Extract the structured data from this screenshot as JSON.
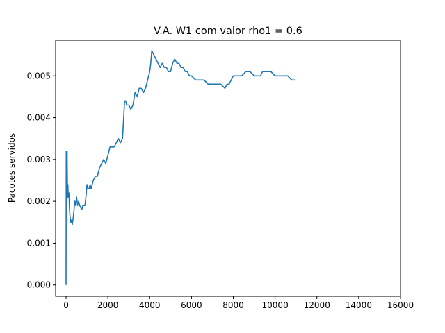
{
  "chart_data": {
    "type": "line",
    "title": "V.A. W1 com valor rho1 = 0.6",
    "xlabel": "",
    "ylabel": "Pacotes servidos",
    "xlim": [
      -500,
      16000
    ],
    "ylim": [
      -0.00027,
      0.00585
    ],
    "xticks": [
      0,
      2000,
      4000,
      6000,
      8000,
      10000,
      12000,
      14000,
      16000
    ],
    "xtick_labels": [
      "0",
      "2000",
      "4000",
      "6000",
      "8000",
      "10000",
      "12000",
      "14000",
      "16000"
    ],
    "yticks": [
      0.0,
      0.001,
      0.002,
      0.003,
      0.004,
      0.005
    ],
    "ytick_labels": [
      "0.000",
      "0.001",
      "0.002",
      "0.003",
      "0.004",
      "0.005"
    ],
    "grid": false,
    "series_color": "#1f77b4",
    "series": [
      {
        "x": [
          0,
          10,
          20,
          30,
          40,
          50,
          60,
          70,
          80,
          90,
          100,
          120,
          140,
          160,
          180,
          200,
          230,
          260,
          300,
          340,
          380,
          420,
          460,
          500,
          550,
          600,
          650,
          700,
          750,
          800,
          850,
          900,
          950,
          1000,
          1050,
          1100,
          1150,
          1200,
          1300,
          1400,
          1500,
          1600,
          1700,
          1800,
          1900,
          2000,
          2100,
          2200,
          2300,
          2400,
          2500,
          2600,
          2700,
          2800,
          2850,
          2900,
          3000,
          3100,
          3200,
          3300,
          3400,
          3500,
          3600,
          3700,
          3800,
          3900,
          4000,
          4050,
          4100,
          4200,
          4300,
          4400,
          4500,
          4600,
          4700,
          4800,
          4900,
          5000,
          5100,
          5200,
          5300,
          5400,
          5500,
          5600,
          5700,
          5800,
          5900,
          6000,
          6200,
          6400,
          6600,
          6800,
          7000,
          7200,
          7400,
          7600,
          7700,
          7800,
          7900,
          8000,
          8200,
          8400,
          8600,
          8800,
          9000,
          9200,
          9300,
          9400,
          9600,
          9800,
          10000,
          10200,
          10400,
          10600,
          10800,
          10950
        ],
        "y": [
          0.0,
          0.0032,
          0.0031,
          0.0028,
          0.0021,
          0.0032,
          0.0026,
          0.0022,
          0.0021,
          0.0024,
          0.0022,
          0.0021,
          0.0022,
          0.0019,
          0.0017,
          0.0016,
          0.0015,
          0.00155,
          0.00145,
          0.0016,
          0.0018,
          0.002,
          0.0019,
          0.0021,
          0.0019,
          0.002,
          0.0019,
          0.00185,
          0.0018,
          0.0019,
          0.0019,
          0.0019,
          0.0021,
          0.0024,
          0.0023,
          0.0023,
          0.0024,
          0.0023,
          0.0025,
          0.0026,
          0.0026,
          0.0028,
          0.0029,
          0.003,
          0.0029,
          0.0031,
          0.0033,
          0.0033,
          0.0033,
          0.0034,
          0.0035,
          0.0034,
          0.0035,
          0.0044,
          0.0044,
          0.0043,
          0.0043,
          0.0042,
          0.0043,
          0.0046,
          0.0045,
          0.0047,
          0.0047,
          0.0046,
          0.0047,
          0.0049,
          0.0051,
          0.0053,
          0.0056,
          0.0055,
          0.0054,
          0.0053,
          0.0052,
          0.0053,
          0.0052,
          0.0052,
          0.0051,
          0.0051,
          0.0053,
          0.0054,
          0.0053,
          0.0053,
          0.0052,
          0.0052,
          0.0051,
          0.0051,
          0.005,
          0.005,
          0.0049,
          0.0049,
          0.0049,
          0.0048,
          0.0048,
          0.0048,
          0.0048,
          0.0047,
          0.0048,
          0.0048,
          0.0049,
          0.005,
          0.005,
          0.005,
          0.0051,
          0.0051,
          0.005,
          0.005,
          0.005,
          0.0051,
          0.0051,
          0.0051,
          0.005,
          0.005,
          0.005,
          0.005,
          0.0049,
          0.0049
        ]
      }
    ]
  }
}
